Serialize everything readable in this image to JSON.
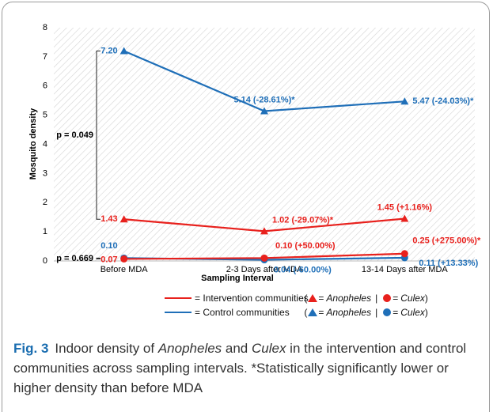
{
  "chart_data": {
    "type": "line",
    "x_label": "Sampling Interval",
    "y_label": "Mosquito density",
    "categories": [
      "Before MDA",
      "2-3 Days after MDA",
      "13-14 Days after MDA"
    ],
    "ylim": [
      0,
      8
    ],
    "yticks": [
      0,
      1,
      2,
      3,
      4,
      5,
      6,
      7,
      8
    ],
    "series": [
      {
        "color": "#1f6fb8",
        "marker": "triangle",
        "values": [
          7.2,
          5.14,
          5.47
        ],
        "value_labels": [
          "7.20",
          "5.14 (-28.61%)*",
          "5.47 (-24.03%)*"
        ]
      },
      {
        "color": "#e8211d",
        "marker": "triangle",
        "values": [
          1.43,
          1.02,
          1.45
        ],
        "value_labels": [
          "1.43",
          "1.02 (-29.07%)*",
          "1.45 (+1.16%)"
        ]
      },
      {
        "color": "#1f6fb8",
        "marker": "circle",
        "values": [
          0.1,
          0.04,
          0.11
        ],
        "value_labels": [
          "0.10",
          "0.04 (-60.00%)",
          "0.11 (+13.33%)"
        ]
      },
      {
        "color": "#e8211d",
        "marker": "circle",
        "values": [
          0.07,
          0.1,
          0.25
        ],
        "value_labels": [
          "0.07",
          "0.10 (+50.00%)",
          "0.25 (+275.00%)*"
        ]
      }
    ],
    "annotations": [
      "p = 0.049",
      "p = 0.669"
    ],
    "legend": {
      "eq": "=",
      "open": "(",
      "sep": "|",
      "close": ")",
      "groups": [
        {
          "name": "Intervention communities",
          "color": "#e8211d"
        },
        {
          "name": "Control communities",
          "color": "#1f6fb8"
        }
      ],
      "markers": [
        "Anopheles",
        "Culex"
      ]
    }
  },
  "caption": {
    "label": "Fig. 3",
    "parts": [
      {
        "text": "Indoor density of "
      },
      {
        "text": "Anopheles",
        "italic": true
      },
      {
        "text": " and "
      },
      {
        "text": "Culex",
        "italic": true
      },
      {
        "text": " in the intervention and control communities across sampling intervals. *Statistically significantly lower or higher density than before MDA"
      }
    ]
  }
}
